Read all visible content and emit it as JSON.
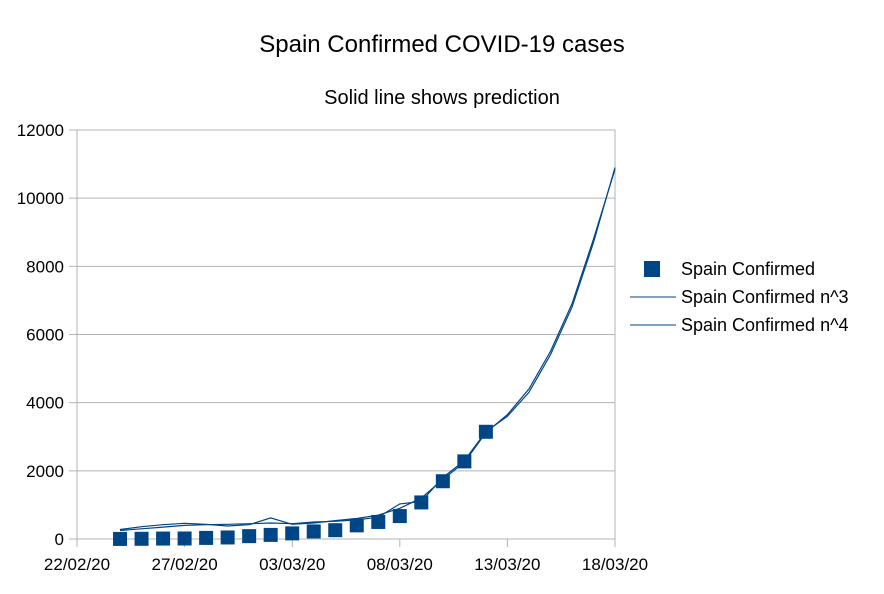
{
  "chart_data": {
    "type": "line",
    "title": "Spain Confirmed COVID-19 cases",
    "subtitle": "Solid line shows prediction",
    "xlabel": "",
    "ylabel": "",
    "x_tick_labels": [
      "22/02/20",
      "27/02/20",
      "03/03/20",
      "08/03/20",
      "13/03/20",
      "18/03/20"
    ],
    "x_range": [
      "22/02/20",
      "18/03/20"
    ],
    "ylim": [
      0,
      12000
    ],
    "y_ticks": [
      0,
      2000,
      4000,
      6000,
      8000,
      10000,
      12000
    ],
    "grid": "horizontal",
    "legend_position": "right",
    "colors": {
      "series": "#004586",
      "grid": "#b3b3b3",
      "axis": "#b3b3b3"
    },
    "series": [
      {
        "name": "Spain Confirmed",
        "kind": "markers",
        "marker": "square",
        "points": [
          [
            "24/02/20",
            2
          ],
          [
            "25/02/20",
            6
          ],
          [
            "26/02/20",
            13
          ],
          [
            "27/02/20",
            15
          ],
          [
            "28/02/20",
            32
          ],
          [
            "29/02/20",
            45
          ],
          [
            "01/03/20",
            84
          ],
          [
            "02/03/20",
            120
          ],
          [
            "03/03/20",
            165
          ],
          [
            "04/03/20",
            222
          ],
          [
            "05/03/20",
            259
          ],
          [
            "06/03/20",
            400
          ],
          [
            "07/03/20",
            500
          ],
          [
            "08/03/20",
            673
          ],
          [
            "09/03/20",
            1073
          ],
          [
            "10/03/20",
            1695
          ],
          [
            "11/03/20",
            2277
          ],
          [
            "12/03/20",
            3146
          ]
        ]
      },
      {
        "name": "Spain Confirmed n^3",
        "kind": "line",
        "points": [
          [
            "24/02/20",
            250
          ],
          [
            "25/02/20",
            300
          ],
          [
            "26/02/20",
            350
          ],
          [
            "27/02/20",
            400
          ],
          [
            "28/02/20",
            420
          ],
          [
            "29/02/20",
            430
          ],
          [
            "01/03/20",
            450
          ],
          [
            "02/03/20",
            470
          ],
          [
            "03/03/20",
            450
          ],
          [
            "04/03/20",
            500
          ],
          [
            "05/03/20",
            520
          ],
          [
            "06/03/20",
            560
          ],
          [
            "07/03/20",
            640
          ],
          [
            "08/03/20",
            1030
          ],
          [
            "09/03/20",
            1100
          ],
          [
            "10/03/20",
            1800
          ],
          [
            "11/03/20",
            2300
          ],
          [
            "12/03/20",
            3150
          ],
          [
            "13/03/20",
            3600
          ],
          [
            "14/03/20",
            4300
          ],
          [
            "15/03/20",
            5400
          ],
          [
            "16/03/20",
            6800
          ],
          [
            "17/03/20",
            8700
          ],
          [
            "18/03/20",
            10900
          ]
        ]
      },
      {
        "name": "Spain Confirmed n^4",
        "kind": "line",
        "points": [
          [
            "24/02/20",
            280
          ],
          [
            "25/02/20",
            360
          ],
          [
            "26/02/20",
            420
          ],
          [
            "27/02/20",
            460
          ],
          [
            "28/02/20",
            430
          ],
          [
            "29/02/20",
            380
          ],
          [
            "01/03/20",
            420
          ],
          [
            "02/03/20",
            620
          ],
          [
            "03/03/20",
            430
          ],
          [
            "04/03/20",
            470
          ],
          [
            "05/03/20",
            540
          ],
          [
            "06/03/20",
            600
          ],
          [
            "07/03/20",
            700
          ],
          [
            "08/03/20",
            900
          ],
          [
            "09/03/20",
            1200
          ],
          [
            "10/03/20",
            1750
          ],
          [
            "11/03/20",
            2250
          ],
          [
            "12/03/20",
            3120
          ],
          [
            "13/03/20",
            3650
          ],
          [
            "14/03/20",
            4400
          ],
          [
            "15/03/20",
            5500
          ],
          [
            "16/03/20",
            6900
          ],
          [
            "17/03/20",
            8800
          ],
          [
            "18/03/20",
            10850
          ]
        ]
      }
    ]
  }
}
